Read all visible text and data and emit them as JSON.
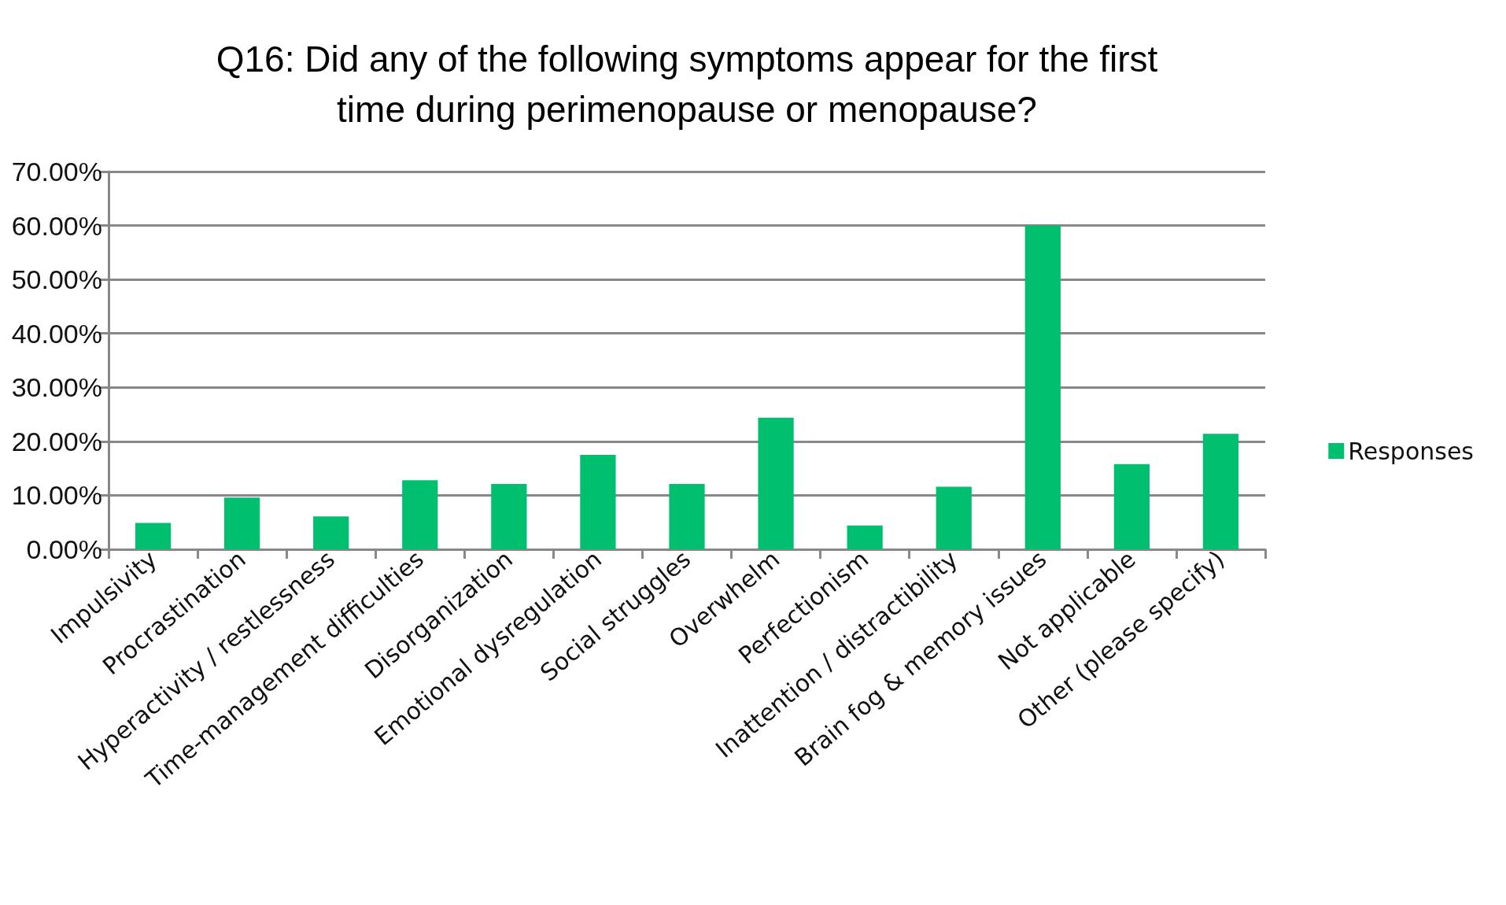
{
  "chart_data": {
    "type": "bar",
    "title": "Q16: Did any of the following symptoms appear for the first\ntime during perimenopause or menopause?",
    "categories": [
      "Impulsivity",
      "Procrastination",
      "Hyperactivity / restlessness",
      "Time-management difficulties",
      "Disorganization",
      "Emotional dysregulation",
      "Social struggles",
      "Overwhelm",
      "Perfectionism",
      "Inattention / distractibility",
      "Brain fog & memory issues",
      "Not applicable",
      "Other (please specify)"
    ],
    "series": [
      {
        "name": "Responses",
        "color": "#00bf6f",
        "values": [
          4.9,
          9.6,
          6.1,
          12.8,
          12.1,
          17.5,
          12.1,
          24.4,
          4.4,
          11.6,
          60.0,
          15.8,
          21.4
        ]
      }
    ],
    "ylim": [
      0,
      70
    ],
    "yticks": [
      {
        "value": 0,
        "label": "0.00%"
      },
      {
        "value": 10,
        "label": "10.00%"
      },
      {
        "value": 20,
        "label": "20.00%"
      },
      {
        "value": 30,
        "label": "30.00%"
      },
      {
        "value": 40,
        "label": "40.00%"
      },
      {
        "value": 50,
        "label": "50.00%"
      },
      {
        "value": 60,
        "label": "60.00%"
      },
      {
        "value": 70,
        "label": "70.00%"
      }
    ],
    "grid": "y",
    "legend": "right"
  }
}
